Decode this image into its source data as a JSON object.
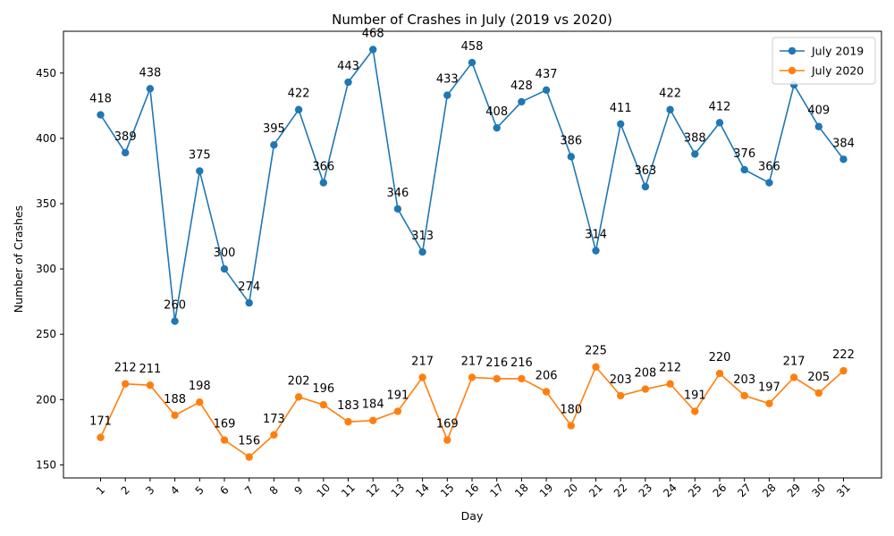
{
  "chart_data": {
    "type": "line",
    "title": "Number of Crashes in July (2019 vs 2020)",
    "xlabel": "Day",
    "ylabel": "Number of Crashes",
    "categories": [
      "1",
      "2",
      "3",
      "4",
      "5",
      "6",
      "7",
      "8",
      "9",
      "10",
      "11",
      "12",
      "13",
      "14",
      "15",
      "16",
      "17",
      "18",
      "19",
      "20",
      "21",
      "22",
      "23",
      "24",
      "25",
      "26",
      "27",
      "28",
      "29",
      "30",
      "31"
    ],
    "ylim": [
      140,
      482
    ],
    "yticks": [
      150,
      200,
      250,
      300,
      350,
      400,
      450
    ],
    "grid": false,
    "legend": "top-right",
    "series": [
      {
        "name": "July 2019",
        "color": "#1f77b4",
        "values": [
          418,
          389,
          438,
          260,
          375,
          300,
          274,
          395,
          422,
          366,
          443,
          468,
          346,
          313,
          433,
          458,
          408,
          428,
          437,
          386,
          314,
          411,
          363,
          422,
          388,
          412,
          376,
          366,
          441,
          409,
          384
        ],
        "labels": [
          "418",
          "389",
          "438",
          "260",
          "375",
          "300",
          "274",
          "395",
          "422",
          "366",
          "443",
          "468",
          "346",
          "313",
          "433",
          "458",
          "408",
          "428",
          "437",
          "386",
          "314",
          "411",
          "363",
          "422",
          "388",
          "412",
          "376",
          "366",
          "",
          "409",
          "384"
        ]
      },
      {
        "name": "July 2020",
        "color": "#ff7f0e",
        "values": [
          171,
          212,
          211,
          188,
          198,
          169,
          156,
          173,
          202,
          196,
          183,
          184,
          191,
          217,
          169,
          217,
          216,
          216,
          206,
          180,
          225,
          203,
          208,
          212,
          191,
          220,
          203,
          197,
          217,
          205,
          222
        ],
        "labels": [
          "171",
          "212",
          "211",
          "188",
          "198",
          "169",
          "156",
          "173",
          "202",
          "196",
          "183",
          "184",
          "191",
          "217",
          "169",
          "217",
          "216",
          "216",
          "206",
          "180",
          "225",
          "203",
          "208",
          "212",
          "191",
          "220",
          "203",
          "197",
          "217",
          "205",
          "222"
        ]
      }
    ]
  }
}
